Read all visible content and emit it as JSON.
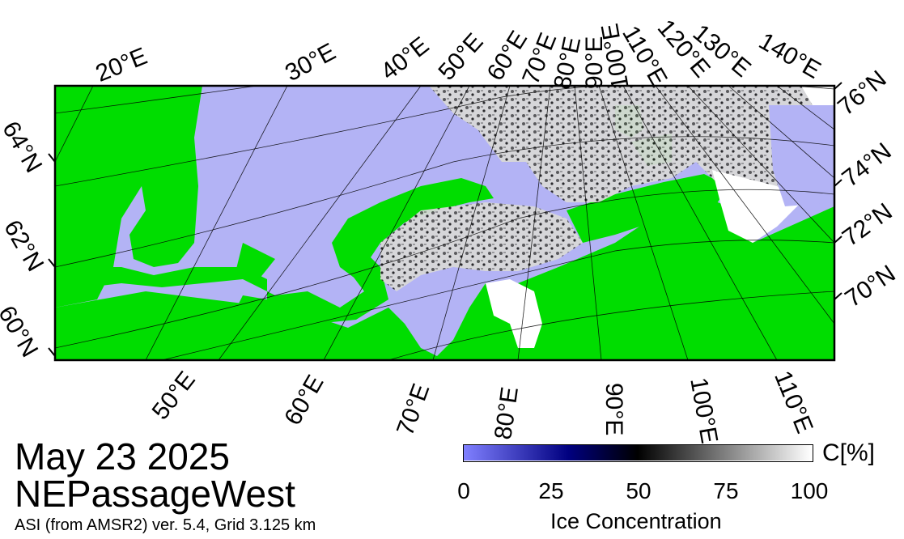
{
  "map": {
    "date": "May 23 2025",
    "region": "NEPassageWest",
    "source": "ASI (from AMSR2) ver. 5.4,  Grid 3.125 km",
    "colors": {
      "water": "#b3b3f5",
      "land": "#00dd00",
      "ice_high": "#ffffff",
      "ice_mid": "#000000",
      "ice_low": "#000080",
      "frame": "#000000"
    },
    "top_lon_labels": [
      "20°E",
      "30°E",
      "40°E",
      "50°E",
      "60°E",
      "70°E",
      "80°E",
      "90°E",
      "100°E",
      "110°E",
      "120°E",
      "130°E",
      "140°E"
    ],
    "bottom_lon_labels": [
      "50°E",
      "60°E",
      "70°E",
      "80°E",
      "90°E",
      "100°E",
      "110°E"
    ],
    "left_lat_labels": [
      "64°N",
      "62°N",
      "60°N"
    ],
    "right_lat_labels": [
      "76°N",
      "74°N",
      "72°N",
      "70°N"
    ]
  },
  "colorbar": {
    "title": "Ice Concentration",
    "unit": "C[%]",
    "ticks": [
      "0",
      "25",
      "50",
      "75",
      "100"
    ],
    "range": [
      0,
      100
    ],
    "stops": [
      "#8080ff",
      "#000080",
      "#000000",
      "#ffffff"
    ]
  }
}
